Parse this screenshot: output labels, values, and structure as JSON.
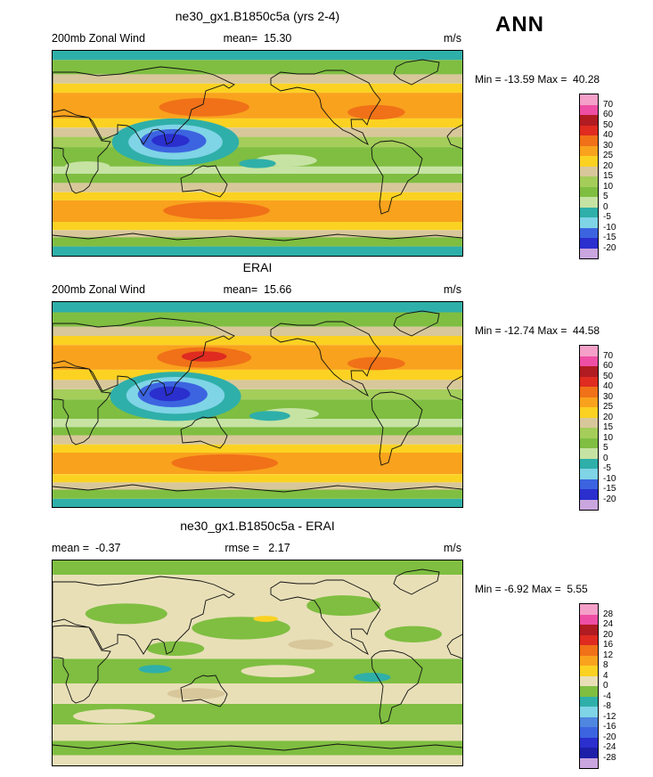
{
  "header": {
    "season_label": "ANN"
  },
  "chart_data": [
    {
      "type": "heatmap",
      "panel": "model",
      "title": "ne30_gx1.B1850c5a (yrs 2-4)",
      "labels": {
        "left": "200mb Zonal Wind",
        "center": "mean=  15.30",
        "right": "m/s"
      },
      "minmax_label": "Min = -13.59 Max =  40.28",
      "stats": {
        "mean": 15.3,
        "min": -13.59,
        "max": 40.28,
        "units": "m/s"
      },
      "colorbar": {
        "tick_labels": [
          "70",
          "60",
          "50",
          "40",
          "30",
          "25",
          "20",
          "15",
          "10",
          "5",
          "0",
          "-5",
          "-10",
          "-15",
          "-20"
        ],
        "colors": [
          "#F5A0C8",
          "#EE4FA4",
          "#B11B22",
          "#DF2B20",
          "#F07118",
          "#F9A21D",
          "#FBD222",
          "#D8C79A",
          "#A4CD5A",
          "#7FBE41",
          "#C6E3A4",
          "#2FAFA9",
          "#7FD4E6",
          "#3C64E0",
          "#2A2FCE",
          "#C9A6DE"
        ]
      },
      "map": {
        "stripes": [
          {
            "from": 0,
            "to": 0.045,
            "color": "#2FAFA9"
          },
          {
            "from": 0.045,
            "to": 0.115,
            "color": "#7FBE41"
          },
          {
            "from": 0.115,
            "to": 0.16,
            "color": "#D8C79A"
          },
          {
            "from": 0.16,
            "to": 0.205,
            "color": "#FBD222"
          },
          {
            "from": 0.205,
            "to": 0.33,
            "color": "#F9A21D"
          },
          {
            "from": 0.33,
            "to": 0.375,
            "color": "#FBD222"
          },
          {
            "from": 0.375,
            "to": 0.42,
            "color": "#D8C79A"
          },
          {
            "from": 0.42,
            "to": 0.47,
            "color": "#A4CD5A"
          },
          {
            "from": 0.47,
            "to": 0.565,
            "color": "#7FBE41"
          },
          {
            "from": 0.565,
            "to": 0.6,
            "color": "#C6E3A4"
          },
          {
            "from": 0.6,
            "to": 0.645,
            "color": "#7FBE41"
          },
          {
            "from": 0.645,
            "to": 0.69,
            "color": "#D8C79A"
          },
          {
            "from": 0.69,
            "to": 0.73,
            "color": "#FBD222"
          },
          {
            "from": 0.73,
            "to": 0.835,
            "color": "#F9A21D"
          },
          {
            "from": 0.835,
            "to": 0.875,
            "color": "#FBD222"
          },
          {
            "from": 0.875,
            "to": 0.91,
            "color": "#D8C79A"
          },
          {
            "from": 0.91,
            "to": 0.955,
            "color": "#7FBE41"
          },
          {
            "from": 0.955,
            "to": 1,
            "color": "#2FAFA9"
          }
        ],
        "blobs": [
          {
            "x": 0.37,
            "y": 0.275,
            "rx": 0.11,
            "ry": 0.045,
            "color": "#F07118"
          },
          {
            "x": 0.79,
            "y": 0.3,
            "rx": 0.07,
            "ry": 0.035,
            "color": "#F07118"
          },
          {
            "x": 0.3,
            "y": 0.445,
            "rx": 0.155,
            "ry": 0.115,
            "color": "#2FAFA9"
          },
          {
            "x": 0.3,
            "y": 0.445,
            "rx": 0.115,
            "ry": 0.085,
            "color": "#7FD4E6"
          },
          {
            "x": 0.295,
            "y": 0.44,
            "rx": 0.08,
            "ry": 0.058,
            "color": "#3C64E0"
          },
          {
            "x": 0.288,
            "y": 0.438,
            "rx": 0.046,
            "ry": 0.032,
            "color": "#2A2FCE"
          },
          {
            "x": 0.57,
            "y": 0.535,
            "rx": 0.075,
            "ry": 0.03,
            "color": "#C6E3A4"
          },
          {
            "x": 0.5,
            "y": 0.55,
            "rx": 0.045,
            "ry": 0.022,
            "color": "#2FAFA9"
          },
          {
            "x": 0.085,
            "y": 0.565,
            "rx": 0.055,
            "ry": 0.025,
            "color": "#C6E3A4"
          },
          {
            "x": 0.4,
            "y": 0.78,
            "rx": 0.13,
            "ry": 0.042,
            "color": "#F07118"
          }
        ]
      }
    },
    {
      "type": "heatmap",
      "panel": "obs",
      "title": "ERAI",
      "labels": {
        "left": "200mb Zonal Wind",
        "center": "mean=  15.66",
        "right": "m/s"
      },
      "minmax_label": "Min = -12.74 Max =  44.58",
      "stats": {
        "mean": 15.66,
        "min": -12.74,
        "max": 44.58,
        "units": "m/s"
      },
      "colorbar": {
        "tick_labels": [
          "70",
          "60",
          "50",
          "40",
          "30",
          "25",
          "20",
          "15",
          "10",
          "5",
          "0",
          "-5",
          "-10",
          "-15",
          "-20"
        ],
        "colors": [
          "#F5A0C8",
          "#EE4FA4",
          "#B11B22",
          "#DF2B20",
          "#F07118",
          "#F9A21D",
          "#FBD222",
          "#D8C79A",
          "#A4CD5A",
          "#7FBE41",
          "#C6E3A4",
          "#2FAFA9",
          "#7FD4E6",
          "#3C64E0",
          "#2A2FCE",
          "#C9A6DE"
        ]
      },
      "map": {
        "stripes": [
          {
            "from": 0,
            "to": 0.05,
            "color": "#2FAFA9"
          },
          {
            "from": 0.05,
            "to": 0.12,
            "color": "#7FBE41"
          },
          {
            "from": 0.12,
            "to": 0.165,
            "color": "#D8C79A"
          },
          {
            "from": 0.165,
            "to": 0.21,
            "color": "#FBD222"
          },
          {
            "from": 0.21,
            "to": 0.33,
            "color": "#F9A21D"
          },
          {
            "from": 0.33,
            "to": 0.38,
            "color": "#FBD222"
          },
          {
            "from": 0.38,
            "to": 0.425,
            "color": "#D8C79A"
          },
          {
            "from": 0.425,
            "to": 0.475,
            "color": "#A4CD5A"
          },
          {
            "from": 0.475,
            "to": 0.57,
            "color": "#7FBE41"
          },
          {
            "from": 0.57,
            "to": 0.61,
            "color": "#C6E3A4"
          },
          {
            "from": 0.61,
            "to": 0.65,
            "color": "#7FBE41"
          },
          {
            "from": 0.65,
            "to": 0.695,
            "color": "#D8C79A"
          },
          {
            "from": 0.695,
            "to": 0.735,
            "color": "#FBD222"
          },
          {
            "from": 0.735,
            "to": 0.84,
            "color": "#F9A21D"
          },
          {
            "from": 0.84,
            "to": 0.88,
            "color": "#FBD222"
          },
          {
            "from": 0.88,
            "to": 0.915,
            "color": "#D8C79A"
          },
          {
            "from": 0.915,
            "to": 0.96,
            "color": "#7FBE41"
          },
          {
            "from": 0.96,
            "to": 1,
            "color": "#2FAFA9"
          }
        ],
        "blobs": [
          {
            "x": 0.37,
            "y": 0.27,
            "rx": 0.115,
            "ry": 0.05,
            "color": "#F07118"
          },
          {
            "x": 0.37,
            "y": 0.265,
            "rx": 0.055,
            "ry": 0.025,
            "color": "#DF2B20"
          },
          {
            "x": 0.79,
            "y": 0.3,
            "rx": 0.07,
            "ry": 0.032,
            "color": "#F07118"
          },
          {
            "x": 0.3,
            "y": 0.46,
            "rx": 0.16,
            "ry": 0.12,
            "color": "#2FAFA9"
          },
          {
            "x": 0.3,
            "y": 0.455,
            "rx": 0.12,
            "ry": 0.09,
            "color": "#7FD4E6"
          },
          {
            "x": 0.293,
            "y": 0.45,
            "rx": 0.085,
            "ry": 0.063,
            "color": "#3C64E0"
          },
          {
            "x": 0.286,
            "y": 0.448,
            "rx": 0.05,
            "ry": 0.036,
            "color": "#2A2FCE"
          },
          {
            "x": 0.58,
            "y": 0.545,
            "rx": 0.07,
            "ry": 0.028,
            "color": "#C6E3A4"
          },
          {
            "x": 0.53,
            "y": 0.555,
            "rx": 0.05,
            "ry": 0.024,
            "color": "#2FAFA9"
          },
          {
            "x": 0.42,
            "y": 0.785,
            "rx": 0.13,
            "ry": 0.042,
            "color": "#F07118"
          }
        ]
      }
    },
    {
      "type": "heatmap",
      "panel": "difference",
      "title": "ne30_gx1.B1850c5a - ERAI",
      "labels": {
        "left": "mean =  -0.37",
        "center": "rmse =   2.17",
        "right": "m/s"
      },
      "minmax_label": "Min = -6.92 Max =  5.55",
      "stats": {
        "mean": -0.37,
        "rmse": 2.17,
        "min": -6.92,
        "max": 5.55,
        "units": "m/s"
      },
      "colorbar": {
        "tick_labels": [
          "28",
          "24",
          "20",
          "16",
          "12",
          "8",
          "4",
          "0",
          "-4",
          "-8",
          "-12",
          "-16",
          "-20",
          "-24",
          "-28"
        ],
        "colors": [
          "#F5A0C8",
          "#EE4FA4",
          "#B11B22",
          "#DF2B20",
          "#F07118",
          "#F9A21D",
          "#FBD222",
          "#E8DFB7",
          "#7FBE41",
          "#2FAFA9",
          "#7FD4E6",
          "#4F86E0",
          "#3C64E0",
          "#2A2FCE",
          "#1E1FA8",
          "#C9A6DE"
        ]
      },
      "map": {
        "stripes": [
          {
            "from": 0,
            "to": 0.07,
            "color": "#7FBE41"
          },
          {
            "from": 0.07,
            "to": 0.48,
            "color": "#E8DFB7"
          },
          {
            "from": 0.48,
            "to": 0.6,
            "color": "#7FBE41"
          },
          {
            "from": 0.6,
            "to": 0.7,
            "color": "#E8DFB7"
          },
          {
            "from": 0.7,
            "to": 0.8,
            "color": "#7FBE41"
          },
          {
            "from": 0.8,
            "to": 0.88,
            "color": "#E8DFB7"
          },
          {
            "from": 0.88,
            "to": 0.95,
            "color": "#7FBE41"
          },
          {
            "from": 0.95,
            "to": 1,
            "color": "#E8DFB7"
          }
        ],
        "blobs": [
          {
            "x": 0.18,
            "y": 0.26,
            "rx": 0.1,
            "ry": 0.05,
            "color": "#7FBE41"
          },
          {
            "x": 0.46,
            "y": 0.33,
            "rx": 0.12,
            "ry": 0.055,
            "color": "#7FBE41"
          },
          {
            "x": 0.71,
            "y": 0.22,
            "rx": 0.09,
            "ry": 0.05,
            "color": "#7FBE41"
          },
          {
            "x": 0.88,
            "y": 0.36,
            "rx": 0.07,
            "ry": 0.04,
            "color": "#7FBE41"
          },
          {
            "x": 0.3,
            "y": 0.43,
            "rx": 0.07,
            "ry": 0.035,
            "color": "#7FBE41"
          },
          {
            "x": 0.55,
            "y": 0.54,
            "rx": 0.09,
            "ry": 0.03,
            "color": "#E8DFB7"
          },
          {
            "x": 0.15,
            "y": 0.76,
            "rx": 0.1,
            "ry": 0.035,
            "color": "#E8DFB7"
          },
          {
            "x": 0.63,
            "y": 0.41,
            "rx": 0.055,
            "ry": 0.025,
            "color": "#D8C79A"
          },
          {
            "x": 0.35,
            "y": 0.65,
            "rx": 0.07,
            "ry": 0.027,
            "color": "#D8C79A"
          },
          {
            "x": 0.25,
            "y": 0.53,
            "rx": 0.04,
            "ry": 0.02,
            "color": "#2FAFA9"
          },
          {
            "x": 0.78,
            "y": 0.57,
            "rx": 0.045,
            "ry": 0.022,
            "color": "#2FAFA9"
          },
          {
            "x": 0.52,
            "y": 0.285,
            "rx": 0.03,
            "ry": 0.015,
            "color": "#FBD222"
          }
        ]
      }
    }
  ]
}
